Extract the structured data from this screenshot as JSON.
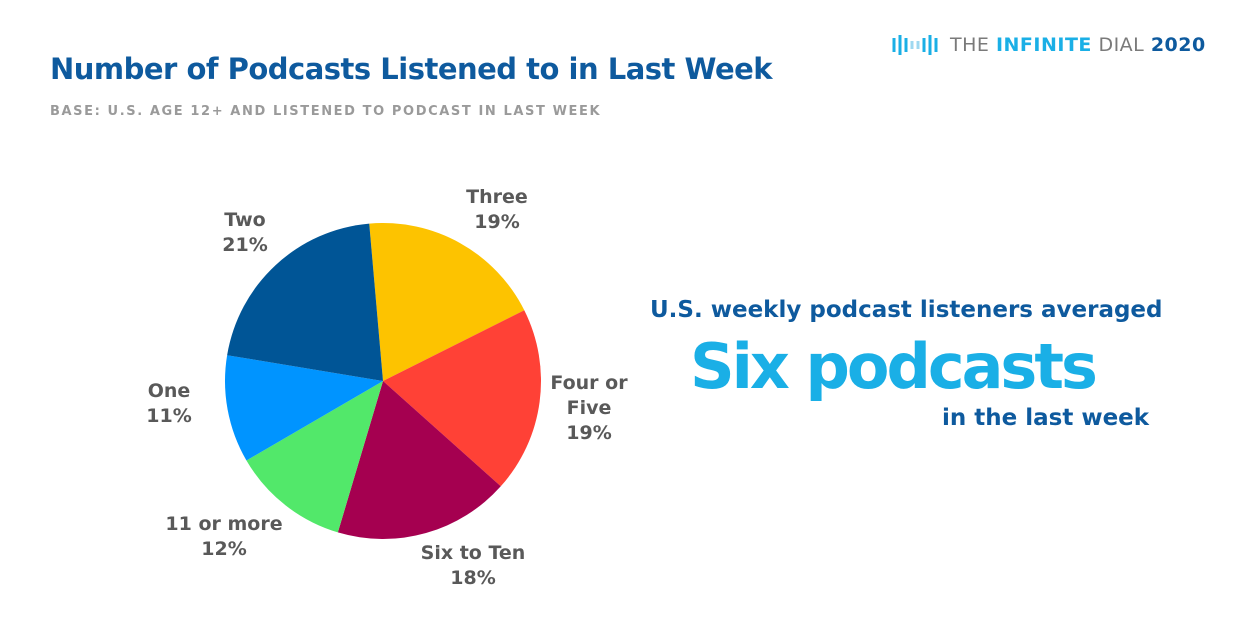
{
  "chart_data": {
    "type": "pie",
    "title": "Number of Podcasts Listened to in Last Week",
    "subtitle": "BASE: U.S. AGE 12+ AND LISTENED TO PODCAST IN LAST WEEK",
    "categories": [
      "Three",
      "Four or Five",
      "Six to Ten",
      "11 or more",
      "One",
      "Two"
    ],
    "values": [
      19,
      19,
      18,
      12,
      11,
      21
    ],
    "value_labels": [
      "19%",
      "19%",
      "18%",
      "12%",
      "11%",
      "21%"
    ],
    "colors": [
      "#FDC300",
      "#FF4136",
      "#A50050",
      "#52E86A",
      "#0094FF",
      "#005596"
    ],
    "callout": {
      "line1": "U.S. weekly podcast listeners averaged",
      "headline": "Six podcasts",
      "line2": "in the last week"
    },
    "logo": {
      "the": "THE",
      "infinite": "INFINITE",
      "dial": "DIAL",
      "year": "2020"
    }
  }
}
